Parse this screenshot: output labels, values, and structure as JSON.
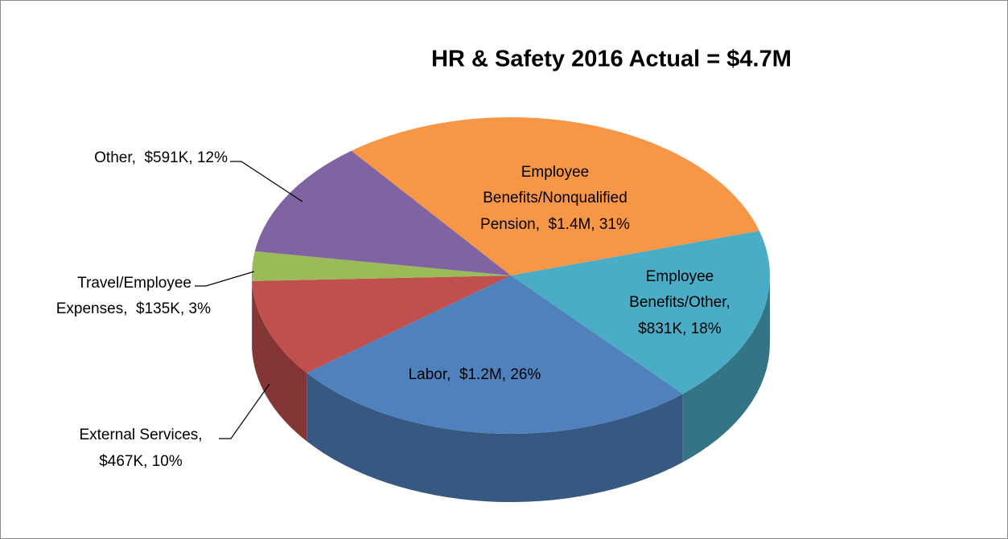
{
  "chart_data": {
    "type": "pie",
    "title": "HR & Safety 2016 Actual = $4.7M",
    "values": [
      31,
      18,
      26,
      10,
      3,
      12
    ],
    "colors": [
      "#f79646",
      "#4bacc6",
      "#4f81bd",
      "#c0504d",
      "#9bbb59",
      "#8064a2"
    ],
    "labels": [
      [
        "Employee",
        "Benefits/Nonqualified",
        "Pension,  $1.4M, 31%"
      ],
      [
        "Employee",
        "Benefits/Other,",
        "$831K, 18%"
      ],
      [
        "Labor,  $1.2M, 26%"
      ],
      [
        "External Services,",
        "$467K, 10%"
      ],
      [
        "Travel/Employee",
        "Expenses,  $135K, 3%"
      ],
      [
        "Other,  $591K, 12%"
      ]
    ]
  }
}
